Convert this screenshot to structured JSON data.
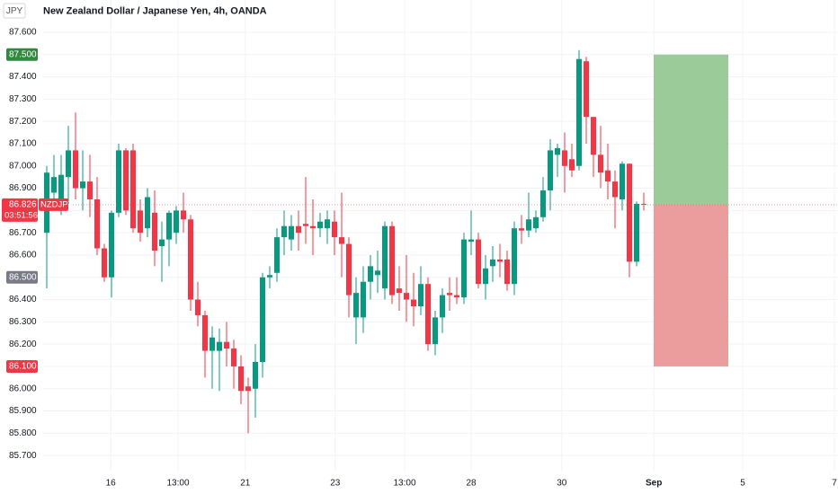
{
  "chart_data": {
    "type": "candlestick",
    "title": "New Zealand Dollar / Japanese Yen, 4h, OANDA",
    "currency": "JPY",
    "colors": {
      "up": "#089981",
      "down": "#f23645"
    },
    "open": [
      86.7,
      86.88,
      86.85,
      86.95,
      87.07,
      86.9,
      86.93,
      86.85,
      86.63,
      86.5,
      86.79,
      87.07,
      87.07,
      86.8,
      86.72,
      86.79,
      86.64,
      86.67,
      86.7,
      86.8,
      86.76,
      86.4,
      86.33,
      86.17,
      86.17,
      86.21,
      86.18,
      86.1,
      86.01,
      86.0,
      86.12,
      86.5,
      86.52,
      86.68,
      86.67,
      86.73,
      86.74,
      86.73,
      86.72,
      86.72,
      86.75,
      86.68,
      86.65,
      86.32,
      86.32,
      86.48,
      86.51,
      86.45,
      86.73,
      86.45,
      86.43,
      86.4,
      86.37,
      86.47,
      86.2,
      86.32,
      86.43,
      86.42,
      86.41,
      86.66,
      86.67,
      86.47,
      86.55,
      86.58,
      86.58,
      86.47,
      86.72,
      86.71,
      86.72,
      86.77,
      86.89,
      87.05,
      87.07,
      87.03,
      87.0,
      87.47,
      87.22,
      87.05,
      86.98,
      86.93,
      86.85,
      87.01,
      86.57,
      86.83
    ],
    "high": [
      87.0,
      87.05,
      87.05,
      87.18,
      87.24,
      87.07,
      87.05,
      86.95,
      86.65,
      86.8,
      87.1,
      87.08,
      87.1,
      86.85,
      86.9,
      86.89,
      86.75,
      86.8,
      86.82,
      86.88,
      86.78,
      86.48,
      86.35,
      86.28,
      86.27,
      86.3,
      86.22,
      86.15,
      86.05,
      86.2,
      86.52,
      86.55,
      86.72,
      86.8,
      86.78,
      86.8,
      86.95,
      86.85,
      86.79,
      86.8,
      86.8,
      86.88,
      86.68,
      86.5,
      86.55,
      86.6,
      86.62,
      86.75,
      86.75,
      86.55,
      86.6,
      86.52,
      86.55,
      86.5,
      86.35,
      86.45,
      86.5,
      86.5,
      86.7,
      86.8,
      86.7,
      86.6,
      86.64,
      86.65,
      86.62,
      86.75,
      86.78,
      86.88,
      86.8,
      86.95,
      87.12,
      87.1,
      87.15,
      87.1,
      87.52,
      87.49,
      87.22,
      87.18,
      87.1,
      86.98,
      87.02,
      87.01,
      86.84,
      86.88
    ],
    "low": [
      86.45,
      86.8,
      86.78,
      86.83,
      86.85,
      86.8,
      86.77,
      86.6,
      86.48,
      86.41,
      86.77,
      86.78,
      86.7,
      86.66,
      86.68,
      86.55,
      86.48,
      86.55,
      86.65,
      86.7,
      86.35,
      86.28,
      86.05,
      86.0,
      85.99,
      86.1,
      86.0,
      85.93,
      85.8,
      85.87,
      86.05,
      86.45,
      86.48,
      86.6,
      86.62,
      86.62,
      86.65,
      86.6,
      86.68,
      86.65,
      86.6,
      86.5,
      86.32,
      86.2,
      86.25,
      86.4,
      86.43,
      86.4,
      86.38,
      86.35,
      86.3,
      86.28,
      86.33,
      86.17,
      86.15,
      86.25,
      86.35,
      86.38,
      86.38,
      86.6,
      86.45,
      86.4,
      86.48,
      86.5,
      86.44,
      86.42,
      86.65,
      86.68,
      86.7,
      86.75,
      86.8,
      86.95,
      86.88,
      86.95,
      86.98,
      87.1,
      86.95,
      86.9,
      86.85,
      86.72,
      86.8,
      86.5,
      86.55,
      86.8
    ],
    "close": [
      86.97,
      86.95,
      86.96,
      87.07,
      86.9,
      86.93,
      86.85,
      86.63,
      86.5,
      86.79,
      87.07,
      86.8,
      86.72,
      86.7,
      86.86,
      86.62,
      86.67,
      86.79,
      86.8,
      86.76,
      86.4,
      86.33,
      86.17,
      86.23,
      86.21,
      86.18,
      86.1,
      85.99,
      85.99,
      86.12,
      86.5,
      86.51,
      86.68,
      86.73,
      86.73,
      86.7,
      86.73,
      86.72,
      86.75,
      86.76,
      86.68,
      86.65,
      86.42,
      86.43,
      86.48,
      86.55,
      86.53,
      86.73,
      86.42,
      86.43,
      86.4,
      86.37,
      86.47,
      86.2,
      86.32,
      86.42,
      86.42,
      86.41,
      86.67,
      86.67,
      86.47,
      86.54,
      86.58,
      86.57,
      86.47,
      86.72,
      86.71,
      86.76,
      86.77,
      86.89,
      87.07,
      87.08,
      87.0,
      86.98,
      87.48,
      87.22,
      87.05,
      86.97,
      86.93,
      86.86,
      87.01,
      86.57,
      86.83,
      86.826
    ],
    "xlim": [
      -0.5,
      110
    ],
    "xticks": [
      {
        "value": 8.9,
        "label": "16"
      },
      {
        "value": 18.25,
        "label": "13:00"
      },
      {
        "value": 27.6,
        "label": "21"
      },
      {
        "value": 40.1,
        "label": "23"
      },
      {
        "value": 49.75,
        "label": "13:00"
      },
      {
        "value": 59,
        "label": "28"
      },
      {
        "value": 71.6,
        "label": "30"
      },
      {
        "value": 84.4,
        "label": "Sep",
        "bold": true
      },
      {
        "value": 96.75,
        "label": "5"
      },
      {
        "value": 109.5,
        "label": "7"
      }
    ],
    "ylim": [
      85.628,
      87.745
    ],
    "yticks": [
      {
        "value": 87.6,
        "label": "87.600"
      },
      {
        "value": 87.5,
        "label": "87.500"
      },
      {
        "value": 87.4,
        "label": "87.400"
      },
      {
        "value": 87.3,
        "label": "87.300"
      },
      {
        "value": 87.2,
        "label": "87.200"
      },
      {
        "value": 87.1,
        "label": "87.100"
      },
      {
        "value": 87.0,
        "label": "87.000"
      },
      {
        "value": 86.9,
        "label": "86.900"
      },
      {
        "value": 86.8,
        "label": "86.800"
      },
      {
        "value": 86.7,
        "label": "86.700"
      },
      {
        "value": 86.6,
        "label": "86.600"
      },
      {
        "value": 86.5,
        "label": "86.500"
      },
      {
        "value": 86.4,
        "label": "86.400"
      },
      {
        "value": 86.3,
        "label": "86.300"
      },
      {
        "value": 86.2,
        "label": "86.200"
      },
      {
        "value": 86.1,
        "label": "86.100"
      },
      {
        "value": 86.0,
        "label": "86.000"
      },
      {
        "value": 85.9,
        "label": "85.900"
      },
      {
        "value": 85.8,
        "label": "85.800"
      },
      {
        "value": 85.7,
        "label": "85.700"
      }
    ],
    "grid": true,
    "levels": [
      {
        "value": 87.5,
        "label": "87.500",
        "color": "#2e8b3e"
      },
      {
        "value": 86.5,
        "label": "86.500",
        "color": "#787b86"
      },
      {
        "value": 86.1,
        "label": "86.100",
        "color": "#f23645"
      }
    ],
    "last": {
      "value": 86.826,
      "label": "86.826",
      "symbol": "NZDJPY",
      "countdown": "03:51:56",
      "color": "#f23645"
    },
    "position": {
      "profit_color": "#9ccb9a",
      "loss_color": "#eb9c9c"
    }
  }
}
